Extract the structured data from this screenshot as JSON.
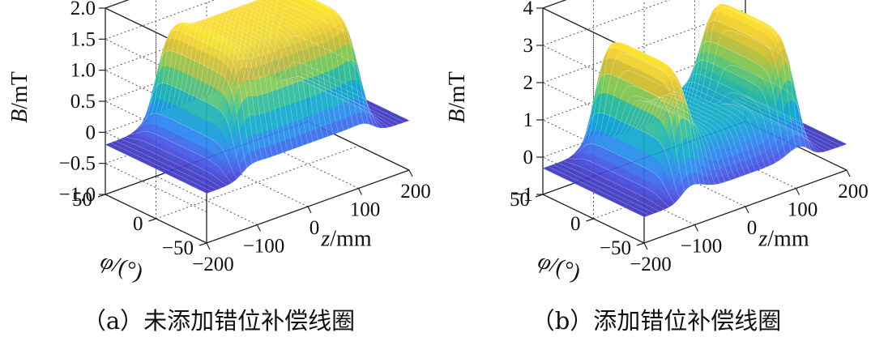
{
  "chart_data": [
    {
      "type": "surface",
      "panel_label": "（a）未添加错位补偿线圈",
      "zlabel_italic": "B",
      "zlabel_unit": "/mT",
      "xlabel_italic": "z",
      "xlabel_unit": "/mm",
      "ylabel_italic": "φ",
      "ylabel_unit": "/(°)",
      "zlim": [
        -1.0,
        2.0
      ],
      "z_ticks": [
        2.0,
        1.5,
        1.0,
        0.5,
        0,
        -0.5,
        -1.0
      ],
      "z_tick_labels": [
        "2.0",
        "1.5",
        "1.0",
        "0.5",
        "0",
        "−0.5",
        "−1.0"
      ],
      "x_ticks": [
        -200,
        -100,
        0,
        100,
        200
      ],
      "x_tick_labels": [
        "−200",
        "−100",
        "0",
        "100",
        "200"
      ],
      "y_ticks": [
        50,
        0,
        -50
      ],
      "y_tick_labels": [
        "50",
        "0",
        "−50"
      ],
      "surface": {
        "plateau_z_halfwidth_mm": 130,
        "plateau_phi_halfwidth_deg": 42,
        "plateau_B_mT": 1.6,
        "edge_peak_B_mT": 1.85,
        "baseline_B_mT": -0.2
      }
    },
    {
      "type": "surface",
      "panel_label": "（b）添加错位补偿线圈",
      "zlabel_italic": "B",
      "zlabel_unit": "/mT",
      "xlabel_italic": "z",
      "xlabel_unit": "/mm",
      "ylabel_italic": "φ",
      "ylabel_unit": "/(°)",
      "zlim": [
        -1,
        4
      ],
      "z_ticks": [
        4,
        3,
        2,
        1,
        0,
        -1
      ],
      "z_tick_labels": [
        "4",
        "3",
        "2",
        "1",
        "0",
        "−1"
      ],
      "x_ticks": [
        -200,
        -100,
        0,
        100,
        200
      ],
      "x_tick_labels": [
        "−200",
        "−100",
        "0",
        "100",
        "200"
      ],
      "y_ticks": [
        50,
        0,
        -50
      ],
      "y_tick_labels": [
        "50",
        "0",
        "−50"
      ],
      "surface": {
        "plateau_z_halfwidth_mm": 130,
        "plateau_phi_halfwidth_deg": 42,
        "peak_B_mT": 3.3,
        "valley_B_mT": 1.0,
        "baseline_B_mT": -0.3
      }
    }
  ]
}
